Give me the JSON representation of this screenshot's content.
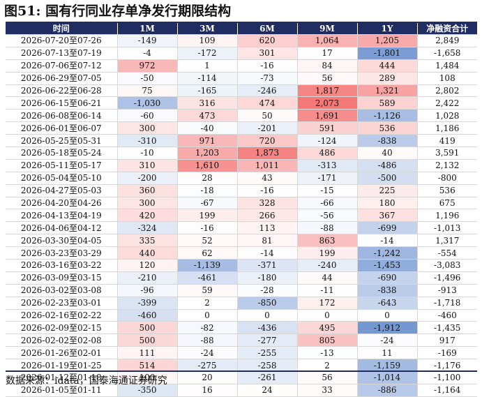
{
  "title": "图51:  国有行同业存单净发行期限结构",
  "source": "数据来源：idata，国泰海通证券研究",
  "chart_data": {
    "type": "table",
    "columns": [
      "时间",
      "1M",
      "3M",
      "6M",
      "9M",
      "1Y",
      "净融资合计"
    ],
    "rows": [
      [
        "2026-07-20至07-26",
        "-149",
        "109",
        "620",
        "1,064",
        "1,205",
        "2,849"
      ],
      [
        "2026-07-13至07-19",
        "-4",
        "-172",
        "301",
        "17",
        "-1,801",
        "-1,658"
      ],
      [
        "2026-07-06至07-12",
        "972",
        "1",
        "-16",
        "84",
        "444",
        "1,484"
      ],
      [
        "2026-06-29至07-05",
        "-50",
        "-114",
        "-73",
        "56",
        "289",
        "108"
      ],
      [
        "2026-06-22至06-28",
        "75",
        "-165",
        "-246",
        "1,817",
        "1,321",
        "2,802"
      ],
      [
        "2026-06-15至06-21",
        "-1,030",
        "316",
        "474",
        "2,073",
        "589",
        "2,422"
      ],
      [
        "2026-06-08至06-14",
        "-60",
        "473",
        "50",
        "1,691",
        "-1,126",
        "1,028"
      ],
      [
        "2026-06-01至06-07",
        "300",
        "-40",
        "-201",
        "591",
        "536",
        "1,186"
      ],
      [
        "2026-05-25至05-31",
        "-310",
        "971",
        "720",
        "-124",
        "-838",
        "419"
      ],
      [
        "2026-05-18至05-24",
        "-10",
        "1,203",
        "1,873",
        "486",
        "40",
        "3,591"
      ],
      [
        "2026-05-11至05-17",
        "310",
        "1,610",
        "1,011",
        "-313",
        "-486",
        "2,132"
      ],
      [
        "2026-05-04至05-10",
        "-200",
        "28",
        "43",
        "-171",
        "-500",
        "-800"
      ],
      [
        "2026-04-27至05-03",
        "360",
        "-18",
        "-16",
        "-15",
        "225",
        "536"
      ],
      [
        "2026-04-20至04-26",
        "300",
        "-67",
        "328",
        "-66",
        "180",
        "675"
      ],
      [
        "2026-04-13至04-19",
        "420",
        "199",
        "266",
        "-56",
        "367",
        "1,196"
      ],
      [
        "2026-04-06至04-12",
        "-324",
        "-16",
        "113",
        "-88",
        "-699",
        "-1,013"
      ],
      [
        "2026-03-30至04-05",
        "335",
        "52",
        "81",
        "863",
        "-14",
        "1,317"
      ],
      [
        "2026-03-23至03-29",
        "440",
        "62",
        "-14",
        "199",
        "-1,242",
        "-554"
      ],
      [
        "2026-03-16至03-22",
        "120",
        "-1,139",
        "-371",
        "-240",
        "-1,453",
        "-3,083"
      ],
      [
        "2026-03-09至03-15",
        "-210",
        "-461",
        "-180",
        "44",
        "-690",
        "-1,496"
      ],
      [
        "2026-03-02至03-08",
        "-96",
        "59",
        "-28",
        "-11",
        "-838",
        "-913"
      ],
      [
        "2026-02-23至03-01",
        "-399",
        "2",
        "-850",
        "172",
        "-643",
        "-1,718"
      ],
      [
        "2026-02-16至02-22",
        "-460",
        "0",
        "0",
        "0",
        "0",
        "-460"
      ],
      [
        "2026-02-09至02-15",
        "500",
        "-82",
        "-436",
        "495",
        "-1,912",
        "-1,435"
      ],
      [
        "2026-02-02至02-08",
        "500",
        "-88",
        "-277",
        "805",
        "-24",
        "917"
      ],
      [
        "2026-01-26至02-01",
        "111",
        "-24",
        "-255",
        "-13",
        "11",
        "-169"
      ],
      [
        "2026-01-19至01-25",
        "514",
        "-275",
        "-258",
        "2",
        "-1,159",
        "-1,176"
      ],
      [
        "2026-01-12至01-18",
        "100",
        "20",
        "-261",
        "56",
        "-1,014",
        "-1,100"
      ],
      [
        "2026-01-05至01-11",
        "-350",
        "16",
        "24",
        "33",
        "-886",
        "-1,164"
      ]
    ],
    "colors": {
      "header": "#1f2d63",
      "positive": "#f25a5a",
      "negative": "#4a78c4"
    }
  }
}
